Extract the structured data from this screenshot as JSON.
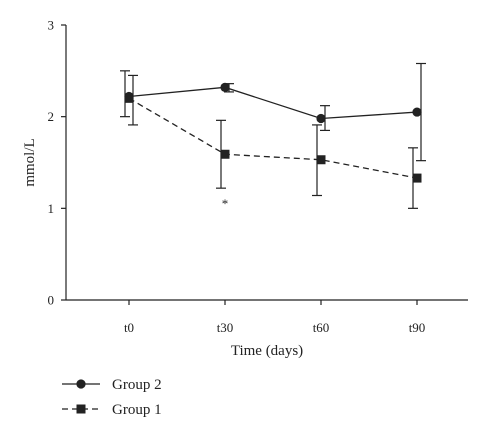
{
  "chart_data": {
    "type": "line",
    "title": "",
    "xlabel": "Time (days)",
    "ylabel": "mmol/L",
    "categories": [
      "t0",
      "t30",
      "t60",
      "t90"
    ],
    "ylim": [
      0,
      3
    ],
    "yticks": [
      0,
      1,
      2,
      3
    ],
    "grid": false,
    "legend_position": "bottom-left",
    "series": [
      {
        "name": "Group 2",
        "marker": "circle",
        "line_style": "solid",
        "values": [
          2.22,
          2.32,
          1.98,
          2.05
        ],
        "error_low": [
          1.91,
          2.27,
          1.85,
          1.52
        ],
        "error_high": [
          2.45,
          2.36,
          2.12,
          2.58
        ]
      },
      {
        "name": "Group 1",
        "marker": "square",
        "line_style": "dashed",
        "values": [
          2.2,
          1.59,
          1.53,
          1.33
        ],
        "error_low": [
          2.0,
          1.22,
          1.14,
          1.0
        ],
        "error_high": [
          2.5,
          1.96,
          1.91,
          1.66
        ]
      }
    ],
    "annotations": [
      {
        "text": "*",
        "x": "t30",
        "y": 1.07
      }
    ],
    "colors": {
      "line": "#222222",
      "axis": "#222222"
    }
  }
}
